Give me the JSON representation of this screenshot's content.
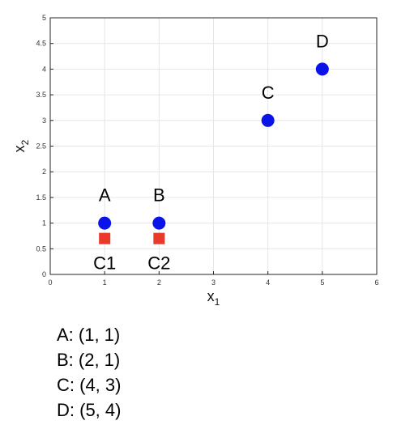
{
  "chart_data": {
    "type": "scatter",
    "xlabel": "x",
    "xlabel_subscript": "1",
    "ylabel": "x",
    "ylabel_subscript": "2",
    "xlim": [
      0,
      6
    ],
    "ylim": [
      0,
      5
    ],
    "xticks": [
      "0",
      "1",
      "2",
      "3",
      "4",
      "5",
      "6"
    ],
    "yticks": [
      "0",
      "0.5",
      "1",
      "1.5",
      "2",
      "2.5",
      "3",
      "3.5",
      "4",
      "4.5",
      "5"
    ],
    "grid": true,
    "series": [
      {
        "marker": "circle",
        "color": "#0a14e8",
        "points": [
          {
            "label": "A",
            "x": 1,
            "y": 1
          },
          {
            "label": "B",
            "x": 2,
            "y": 1
          },
          {
            "label": "C",
            "x": 4,
            "y": 3
          },
          {
            "label": "D",
            "x": 5,
            "y": 4
          }
        ]
      },
      {
        "marker": "square",
        "color": "#e8392a",
        "points": [
          {
            "label": "C1",
            "x": 1,
            "y": 0.7
          },
          {
            "label": "C2",
            "x": 2,
            "y": 0.7
          }
        ]
      }
    ]
  },
  "legend_lines": [
    "A: (1, 1)",
    "B: (2, 1)",
    "C: (4, 3)",
    "D: (5, 4)"
  ]
}
